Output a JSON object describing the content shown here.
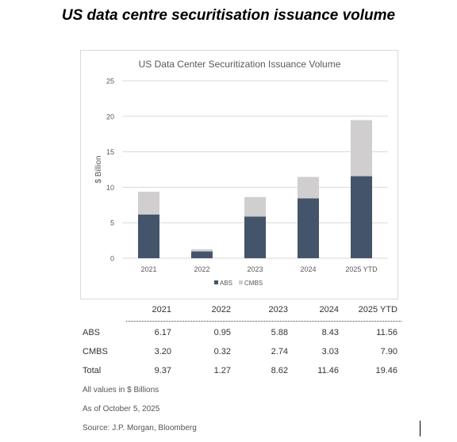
{
  "headline": "US data centre securitisation issuance volume",
  "chart_data": {
    "type": "bar",
    "stacked": true,
    "title": "US Data Center Securitization Issuance Volume",
    "ylabel": "$ Billion",
    "xlabel": "",
    "categories": [
      "2021",
      "2022",
      "2023",
      "2024",
      "2025 YTD"
    ],
    "ylim": [
      0,
      25
    ],
    "yticks": [
      0,
      5,
      10,
      15,
      20,
      25
    ],
    "grid": true,
    "legend_placement": "bottom",
    "series": [
      {
        "name": "ABS",
        "values": [
          6.17,
          0.95,
          5.88,
          8.43,
          11.56
        ],
        "color": "#44546a"
      },
      {
        "name": "CMBS",
        "values": [
          3.2,
          0.32,
          2.74,
          3.03,
          7.9
        ],
        "color": "#d0cece"
      }
    ]
  },
  "table": {
    "headers": [
      "2021",
      "2022",
      "2023",
      "2024",
      "2025 YTD"
    ],
    "rows": [
      {
        "label": "ABS",
        "values": [
          "6.17",
          "0.95",
          "5.88",
          "8.43",
          "11.56"
        ]
      },
      {
        "label": "CMBS",
        "values": [
          "3.20",
          "0.32",
          "2.74",
          "3.03",
          "7.90"
        ]
      },
      {
        "label": "Total",
        "values": [
          "9.37",
          "1.27",
          "8.62",
          "11.46",
          "19.46"
        ]
      }
    ]
  },
  "notes": {
    "units": "All values in $ Billions",
    "as_of": "As of October 5, 2025",
    "source": "Source: J.P. Morgan, Bloomberg"
  }
}
